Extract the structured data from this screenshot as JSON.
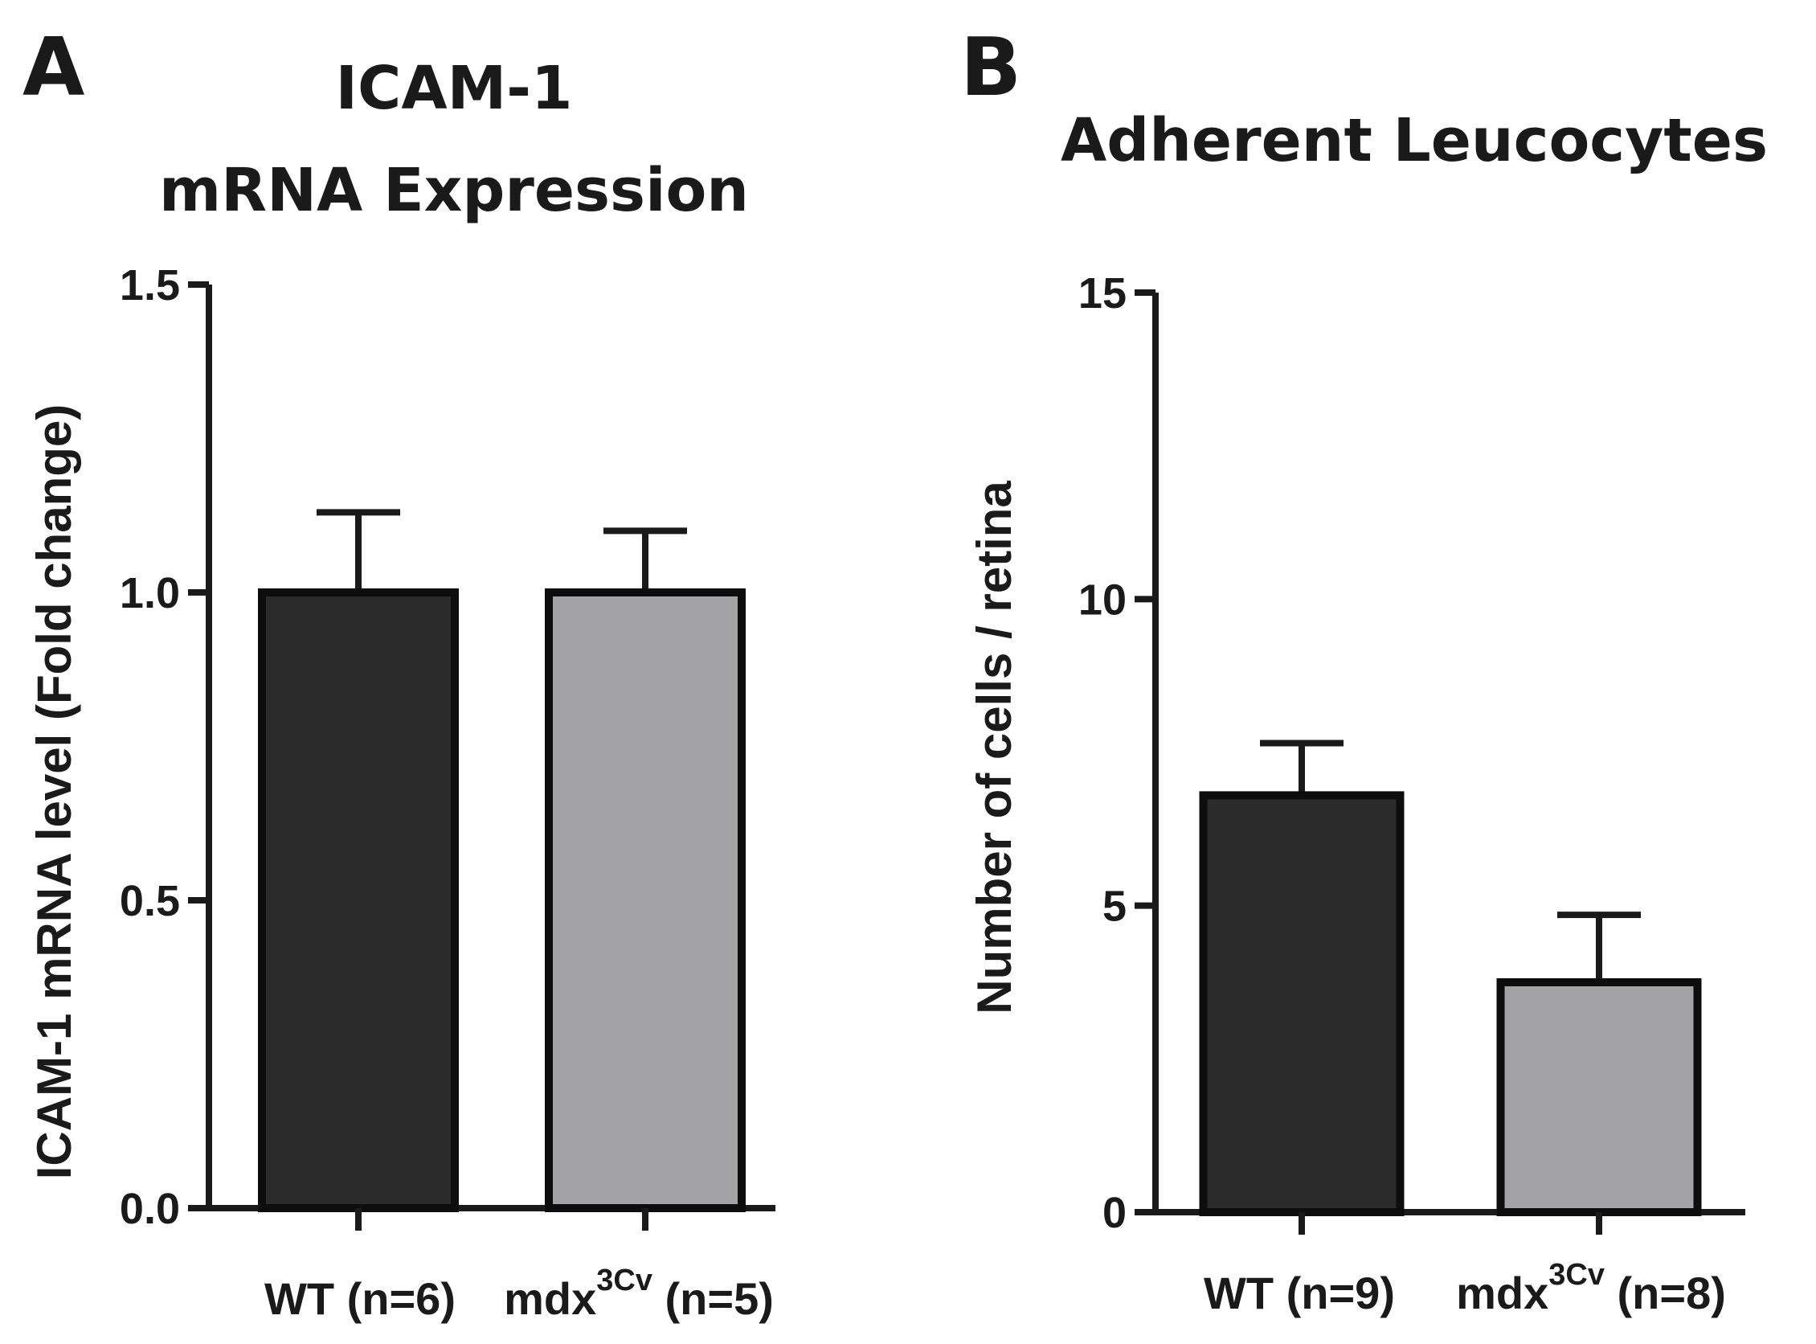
{
  "chart_data": [
    {
      "type": "bar",
      "panel": "A",
      "title_lines": [
        "ICAM-1",
        "mRNA Expression"
      ],
      "ylabel": "ICAM-1 mRNA level (Fold change)",
      "xlabel": "",
      "ylim": [
        0,
        1.5
      ],
      "yticks": [
        0.0,
        0.5,
        1.0,
        1.5
      ],
      "ytick_labels": [
        "0.0",
        "0.5",
        "1.0",
        "1.5"
      ],
      "categories": [
        {
          "main": "WT (n=6)",
          "sup": "",
          "tail": ""
        },
        {
          "main": "mdx",
          "sup": "3Cv",
          "tail": " (n=5)"
        }
      ],
      "values": [
        1.0,
        1.0
      ],
      "errors": [
        0.13,
        0.1
      ],
      "colors": [
        "#2b2b2b",
        "#a3a3a5"
      ]
    },
    {
      "type": "bar",
      "panel": "B",
      "title_lines": [
        "Adherent Leucocytes"
      ],
      "ylabel": "Number of cells / retina",
      "xlabel": "",
      "ylim": [
        0,
        15
      ],
      "yticks": [
        0,
        5,
        10,
        15
      ],
      "ytick_labels": [
        "0",
        "5",
        "10",
        "15"
      ],
      "categories": [
        {
          "main": "WT (n=9)",
          "sup": "",
          "tail": ""
        },
        {
          "main": "mdx",
          "sup": "3Cv",
          "tail": " (n=8)"
        }
      ],
      "values": [
        6.8,
        3.75
      ],
      "errors": [
        0.85,
        1.1
      ],
      "colors": [
        "#2b2b2b",
        "#a3a3a5"
      ]
    }
  ]
}
